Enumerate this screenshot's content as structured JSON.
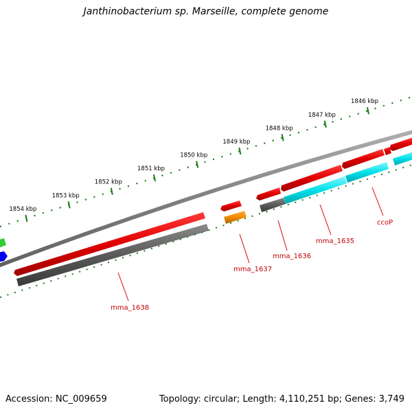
{
  "title": "Janthinobacterium sp. Marseille, complete genome",
  "accession_text": "Accession: NC_009659",
  "summary_text": "Topology: circular; Length: 4,110,251 bp; Genes: 3,749",
  "scale_labels": [
    {
      "text": "1846 kbp",
      "kbp": 1846
    },
    {
      "text": "1847 kbp",
      "kbp": 1847
    },
    {
      "text": "1848 kbp",
      "kbp": 1848
    },
    {
      "text": "1849 kbp",
      "kbp": 1849
    },
    {
      "text": "1850 kbp",
      "kbp": 1850
    },
    {
      "text": "1851 kbp",
      "kbp": 1851
    },
    {
      "text": "1852 kbp",
      "kbp": 1852
    },
    {
      "text": "1853 kbp",
      "kbp": 1853
    },
    {
      "text": "1854 kbp",
      "kbp": 1854
    }
  ],
  "gene_labels": [
    {
      "id": "ccop",
      "text": "ccoP"
    },
    {
      "id": "mma1635",
      "text": "mma_1635"
    },
    {
      "id": "mma1636",
      "text": "mma_1636"
    },
    {
      "id": "mma1637",
      "text": "mma_1637"
    },
    {
      "id": "mma1638",
      "text": "mma_1638"
    }
  ],
  "colors": {
    "backbone": "#8c8c8c",
    "gene": "#e00000",
    "cds_gray": "#5a5a5a",
    "cds_cyan": "#00e0e8",
    "cds_orange": "#f08c00",
    "scale": "#1a7a1a",
    "label": "#c00000",
    "edge_green": "#33cc33",
    "edge_blue": "#0000ee"
  }
}
